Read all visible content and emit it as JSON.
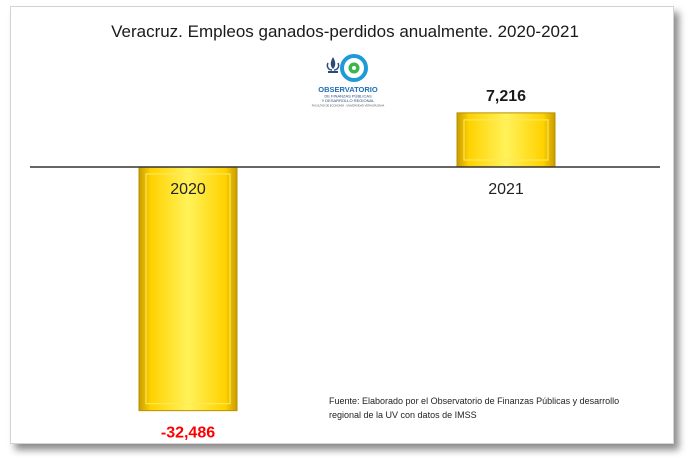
{
  "chart_data": {
    "type": "bar",
    "title": "Veracruz. Empleos ganados-perdidos anualmente. 2020-2021",
    "categories": [
      "2020",
      "2021"
    ],
    "values": [
      -32486,
      7216
    ],
    "value_labels": [
      "-32,486",
      "7,216"
    ],
    "xlabel": "",
    "ylabel": "",
    "ylim": [
      -33500,
      12500
    ],
    "grid": false,
    "legend": "none",
    "source_note": [
      "Fuente: Elaborado por el Observatorio de Finanzas Públicas y desarrollo",
      "regional de la UV con datos de IMSS"
    ],
    "colors": {
      "bar_top": "#fff45a",
      "bar_mid": "#ffd400",
      "bar_edge": "#b89000",
      "negative_label": "#ff0000",
      "positive_label": "#1a1a1a"
    }
  },
  "logo": {
    "name": "OBSERVATORIO",
    "line1": "DE FINANZAS PÚBLICAS",
    "line2": "Y DESARROLLO REGIONAL",
    "line3": "FACULTAD DE ECONOMÍA · UNIVERSIDAD VERACRUZANA"
  }
}
